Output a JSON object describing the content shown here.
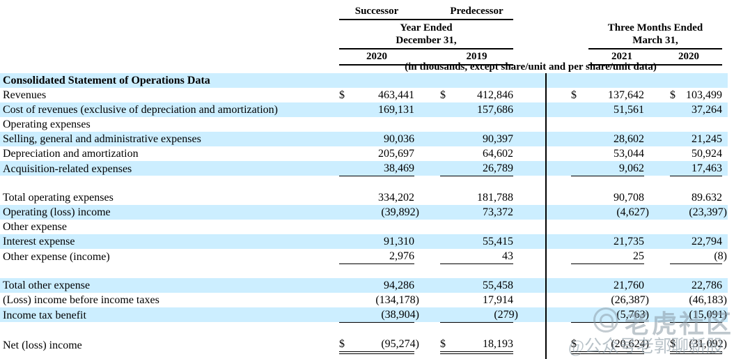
{
  "header": {
    "successor": "Successor",
    "predecessor": "Predecessor",
    "left_period_line1": "Year Ended",
    "left_period_line2": "December 31,",
    "right_period_line1": "Three Months Ended",
    "right_period_line2": "March 31,",
    "left_years": [
      "2020",
      "2019"
    ],
    "right_years": [
      "2021",
      "2020"
    ],
    "units_note": "(in thousands, except share/unit and per share/unit data)"
  },
  "table": {
    "currency_symbol": "$",
    "columns": [
      "Year Ended December 31, 2020 (Successor)",
      "Year Ended December 31, 2019 (Predecessor)",
      "Three Months Ended March 31, 2021",
      "Three Months Ended March 31, 2020"
    ],
    "rows": [
      {
        "label": "Consolidated Statement of Operations Data",
        "bold": true,
        "stripe": true,
        "indent": 0,
        "dollar": false,
        "underline": "none",
        "values": [
          "",
          "",
          "",
          ""
        ]
      },
      {
        "label": "Revenues",
        "stripe": false,
        "indent": 0,
        "dollar": true,
        "underline": "none",
        "values": [
          "463,441",
          "412,846",
          "137,642",
          "103,499"
        ]
      },
      {
        "label": "Cost of revenues (exclusive of depreciation and amortization)",
        "stripe": true,
        "indent": 0,
        "dollar": false,
        "underline": "none",
        "values": [
          "169,131",
          "157,686",
          "51,561",
          "37,264"
        ]
      },
      {
        "label": "Operating expenses",
        "stripe": false,
        "indent": 0,
        "dollar": false,
        "underline": "none",
        "values": [
          "",
          "",
          "",
          ""
        ]
      },
      {
        "label": "Selling, general and administrative expenses",
        "stripe": true,
        "indent": 1,
        "dollar": false,
        "underline": "none",
        "values": [
          "90,036",
          "90,397",
          "28,602",
          "21,245"
        ]
      },
      {
        "label": "Depreciation and amortization",
        "stripe": false,
        "indent": 1,
        "dollar": false,
        "underline": "none",
        "values": [
          "205,697",
          "64,602",
          "53,044",
          "50,924"
        ]
      },
      {
        "label": "Acquisition-related expenses",
        "stripe": true,
        "indent": 1,
        "dollar": false,
        "underline": "single",
        "values": [
          "38,469",
          "26,789",
          "9,062",
          "17,463"
        ]
      },
      {
        "spacer": true,
        "label": "",
        "values": [
          "",
          "",
          "",
          ""
        ]
      },
      {
        "label": "Total operating expenses",
        "stripe": false,
        "indent": 2,
        "dollar": false,
        "underline": "none",
        "values": [
          "334,202",
          "181,788",
          "90,708",
          "89.632"
        ]
      },
      {
        "label": "Operating (loss) income",
        "stripe": true,
        "indent": 0,
        "dollar": false,
        "underline": "none",
        "values": [
          "(39,892)",
          "73,372",
          "(4,627)",
          "(23,397)"
        ]
      },
      {
        "label": "Other expense",
        "stripe": false,
        "indent": 0,
        "dollar": false,
        "underline": "none",
        "values": [
          "",
          "",
          "",
          ""
        ]
      },
      {
        "label": "Interest expense",
        "stripe": true,
        "indent": 1,
        "dollar": false,
        "underline": "none",
        "values": [
          "91,310",
          "55,415",
          "21,735",
          "22,794"
        ]
      },
      {
        "label": "Other expense (income)",
        "stripe": false,
        "indent": 1,
        "dollar": false,
        "underline": "single",
        "values": [
          "2,976",
          "43",
          "25",
          "(8)"
        ]
      },
      {
        "spacer": true,
        "label": "",
        "values": [
          "",
          "",
          "",
          ""
        ]
      },
      {
        "label": "Total other expense",
        "stripe": true,
        "indent": 2,
        "dollar": false,
        "underline": "none",
        "values": [
          "94,286",
          "55,458",
          "21,760",
          "22,786"
        ]
      },
      {
        "label": "(Loss) income before income taxes",
        "stripe": false,
        "indent": 0,
        "dollar": false,
        "underline": "none",
        "values": [
          "(134,178)",
          "17,914",
          "(26,387)",
          "(46,183)"
        ]
      },
      {
        "label": "Income tax benefit",
        "stripe": true,
        "indent": 0,
        "dollar": false,
        "underline": "single",
        "values": [
          "(38,904)",
          "(279)",
          "(5,763)",
          "(15,091)"
        ]
      },
      {
        "spacer": true,
        "label": "",
        "values": [
          "",
          "",
          "",
          ""
        ]
      },
      {
        "label": "Net (loss) income",
        "stripe": false,
        "indent": 0,
        "dollar": true,
        "underline": "double",
        "values": [
          "(95,274)",
          "18,193",
          "(20,624)",
          "(31,092)"
        ]
      }
    ]
  },
  "watermark": {
    "badge": "tiger-circle-logo",
    "line1": "老虎社区",
    "line2": "@公众号老郭聊新股"
  },
  "colors": {
    "row_stripe": "#cceeff",
    "divider": "#000000",
    "watermark": "#8a9aa5"
  }
}
